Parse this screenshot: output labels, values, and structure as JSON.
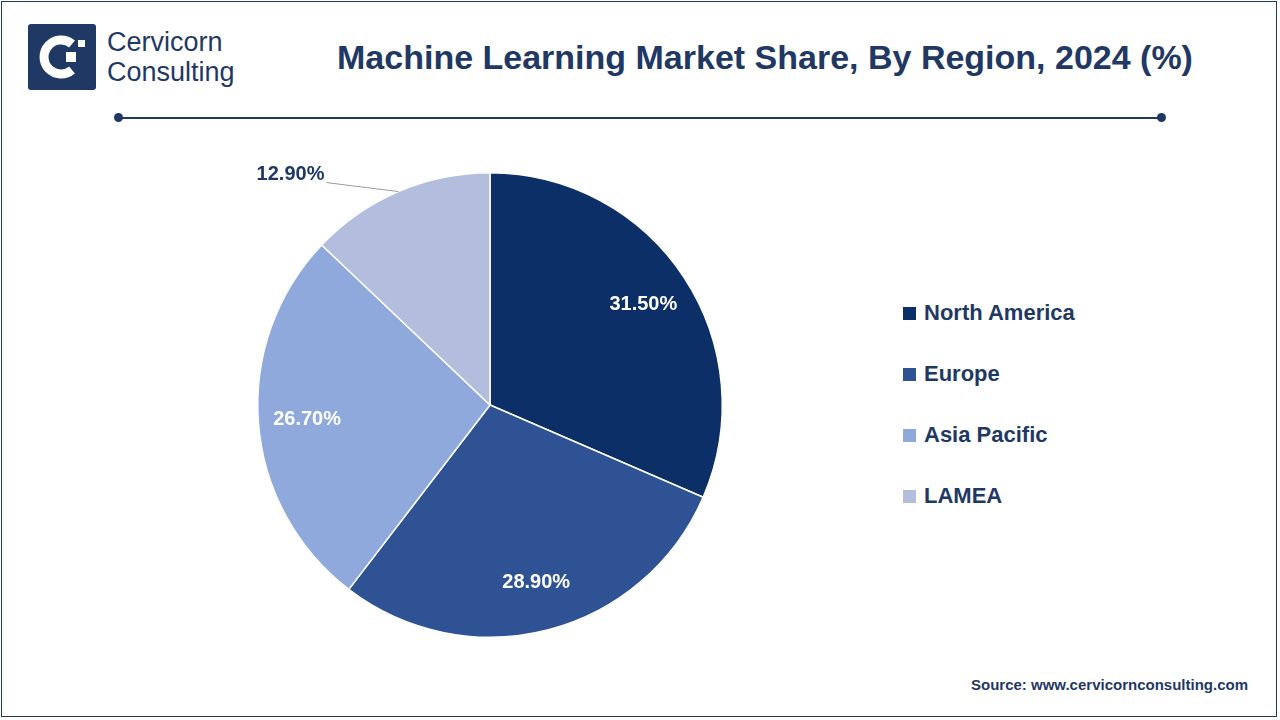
{
  "header": {
    "logo_text": [
      "Cervicorn",
      "Consulting"
    ]
  },
  "chart_data": {
    "type": "pie",
    "title": "Machine Learning Market Share, By Region, 2024 (%)",
    "categories": [
      "North America",
      "Europe",
      "Asia Pacific",
      "LAMEA"
    ],
    "values": [
      31.5,
      28.9,
      26.7,
      12.9
    ],
    "value_labels": [
      "31.50%",
      "28.90%",
      "26.70%",
      "12.90%"
    ],
    "colors": [
      "#0b2f66",
      "#2e5294",
      "#8fa9dc",
      "#b3bddd"
    ],
    "data_labels": true,
    "legend": "right"
  },
  "footer": {
    "source": "Source: www.cervicornconsulting.com"
  }
}
